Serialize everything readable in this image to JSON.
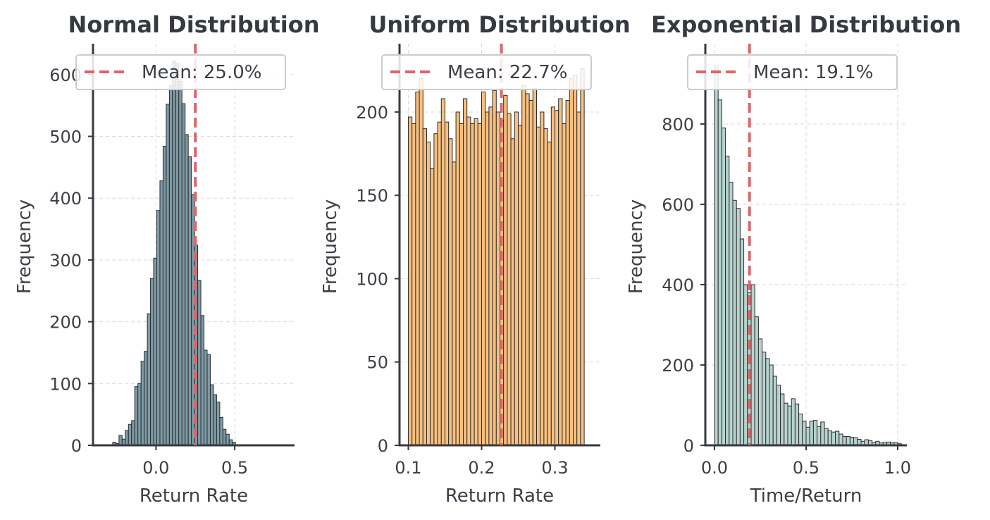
{
  "chart_data": [
    {
      "type": "histogram",
      "title": "Normal Distribution",
      "xlabel": "Return Rate",
      "ylabel": "Frequency",
      "xlim": [
        -0.4,
        0.88
      ],
      "ylim": [
        0,
        650
      ],
      "xticks": [
        0.0,
        0.5
      ],
      "xtick_labels": [
        "0.0",
        "0.5"
      ],
      "yticks": [
        0,
        100,
        200,
        300,
        400,
        500,
        600
      ],
      "ytick_labels": [
        "0",
        "100",
        "200",
        "300",
        "400",
        "500",
        "600"
      ],
      "bar_color": "#7d9ba6",
      "bin_start": -0.275,
      "bin_width": 0.02,
      "counts": [
        5,
        3,
        16,
        10,
        24,
        34,
        40,
        95,
        100,
        136,
        152,
        213,
        270,
        303,
        380,
        428,
        484,
        552,
        582,
        622,
        618,
        589,
        553,
        503,
        467,
        406,
        324,
        267,
        210,
        154,
        147,
        98,
        82,
        70,
        45,
        26,
        18,
        9,
        5
      ],
      "mean": 0.25,
      "legend_label": "Mean: 25.0%",
      "mean_color": "#d9676a",
      "grid": true,
      "legend_position": "top-right"
    },
    {
      "type": "histogram",
      "title": "Uniform Distribution",
      "xlabel": "Return Rate",
      "ylabel": "Frequency",
      "xlim": [
        0.088,
        0.362
      ],
      "ylim": [
        0,
        241
      ],
      "xticks": [
        0.1,
        0.2,
        0.3
      ],
      "xtick_labels": [
        "0.1",
        "0.2",
        "0.3"
      ],
      "yticks": [
        0,
        50,
        100,
        150,
        200
      ],
      "ytick_labels": [
        "0",
        "50",
        "100",
        "150",
        "200"
      ],
      "bar_color": "#f7c080",
      "bin_start": 0.1,
      "bin_width": 0.005,
      "counts": [
        197,
        193,
        212,
        220,
        190,
        182,
        166,
        187,
        194,
        208,
        194,
        184,
        170,
        200,
        193,
        208,
        197,
        193,
        196,
        193,
        212,
        200,
        203,
        213,
        200,
        195,
        210,
        199,
        184,
        200,
        192,
        216,
        211,
        207,
        214,
        191,
        200,
        190,
        182,
        203,
        201,
        208,
        193,
        207,
        220,
        222,
        200,
        226
      ],
      "mean": 0.227,
      "legend_label": "Mean: 22.7%",
      "mean_color": "#d9676a",
      "grid": true,
      "legend_position": "top-right"
    },
    {
      "type": "histogram",
      "title": "Exponential Distribution",
      "xlabel": "Time/Return",
      "ylabel": "Frequency",
      "xlim": [
        -0.05,
        1.05
      ],
      "ylim": [
        0,
        1000
      ],
      "xticks": [
        0.0,
        0.5,
        1.0
      ],
      "xtick_labels": [
        "0.0",
        "0.5",
        "1.0"
      ],
      "yticks": [
        0,
        200,
        400,
        600,
        800
      ],
      "ytick_labels": [
        "0",
        "200",
        "400",
        "600",
        "800"
      ],
      "bar_color": "#b7d3cd",
      "bin_start": 0.0,
      "bin_width": 0.02,
      "counts": [
        945,
        860,
        790,
        720,
        655,
        610,
        590,
        514,
        400,
        380,
        400,
        320,
        265,
        232,
        216,
        200,
        172,
        150,
        128,
        105,
        98,
        116,
        103,
        78,
        60,
        45,
        60,
        62,
        47,
        58,
        42,
        36,
        33,
        35,
        28,
        22,
        22,
        20,
        19,
        15,
        10,
        14,
        12,
        7,
        10,
        6,
        7,
        8,
        6,
        7,
        4
      ],
      "mean": 0.191,
      "legend_label": "Mean: 19.1%",
      "mean_color": "#d9676a",
      "grid": true,
      "legend_position": "top-right"
    }
  ]
}
